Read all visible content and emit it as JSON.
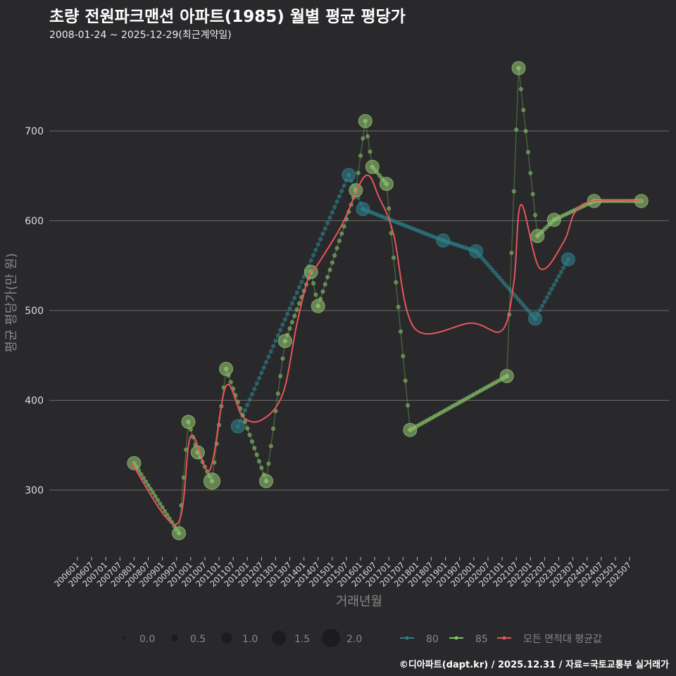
{
  "header": {
    "title": "초량 전원파크맨션 아파트(1985) 월별 평균 평당가",
    "subtitle": "2008-01-24 ~ 2025-12-29(최근계약일)"
  },
  "caption": "©디아파트(dapt.kr) / 2025.12.31 / 자료=국토교통부 실거래가",
  "chart_data": {
    "type": "scatter",
    "title": "초량 전원파크맨션 아파트(1985) 월별 평균 평당가",
    "xlabel": "거래년월",
    "ylabel": "평균 평당가(만 원)",
    "ylim": [
      225,
      790
    ],
    "xlim": [
      "2005-10",
      "2026-02"
    ],
    "yticks": [
      300,
      400,
      500,
      600,
      700
    ],
    "xticks": [
      "200601",
      "200607",
      "200701",
      "200707",
      "200801",
      "200807",
      "200901",
      "200907",
      "201001",
      "201007",
      "201101",
      "201107",
      "201201",
      "201207",
      "201301",
      "201307",
      "201401",
      "201407",
      "201501",
      "201507",
      "201601",
      "201607",
      "201701",
      "201707",
      "201801",
      "201807",
      "201901",
      "201907",
      "202001",
      "202007",
      "202101",
      "202107",
      "202201",
      "202207",
      "202301",
      "202307",
      "202401",
      "202407",
      "202501",
      "202507"
    ],
    "grid": true,
    "colors": {
      "80": "#2a7f86",
      "85": "#7dc365",
      "avg": "#e8555a",
      "bubble85": "#8fbf6e",
      "bubble80": "#2f7f8a"
    },
    "size_legend": {
      "title": "",
      "values": [
        0.0,
        0.5,
        1.0,
        1.5,
        2.0
      ],
      "labels": [
        "0.0",
        "0.5",
        "1.0",
        "1.5",
        "2.0"
      ]
    },
    "legend": {
      "placement": "bottom",
      "entries": [
        "80",
        "85",
        "모든 면적대 평균값"
      ]
    },
    "series": [
      {
        "name": "80",
        "points": [
          [
            "2011-09",
            371,
            1
          ],
          [
            "2015-08",
            651,
            1
          ],
          [
            "2016-02",
            613,
            1
          ],
          [
            "2018-12",
            578,
            1
          ],
          [
            "2020-02",
            566,
            1
          ],
          [
            "2022-03",
            491,
            1
          ],
          [
            "2023-05",
            557,
            1
          ]
        ]
      },
      {
        "name": "85",
        "points": [
          [
            "2008-01",
            330,
            1
          ],
          [
            "2009-08",
            252,
            1
          ],
          [
            "2009-12",
            376,
            1
          ],
          [
            "2010-04",
            342,
            1
          ],
          [
            "2010-10",
            310,
            1.6
          ],
          [
            "2011-04",
            435,
            1
          ],
          [
            "2012-09",
            310,
            1
          ],
          [
            "2013-05",
            466,
            1
          ],
          [
            "2014-04",
            543,
            1
          ],
          [
            "2014-07",
            505,
            1
          ],
          [
            "2015-11",
            634,
            1
          ],
          [
            "2016-03",
            711,
            1
          ],
          [
            "2016-06",
            660,
            1
          ],
          [
            "2016-12",
            641,
            1
          ],
          [
            "2017-10",
            367,
            1
          ],
          [
            "2021-03",
            427,
            1
          ],
          [
            "2021-08",
            770,
            1
          ],
          [
            "2022-04",
            583,
            1
          ],
          [
            "2022-11",
            601,
            1
          ],
          [
            "2024-04",
            622,
            1
          ],
          [
            "2025-12",
            622,
            1
          ]
        ]
      },
      {
        "name": "모든 면적대 평균값",
        "points": [
          [
            "2007-12",
            330
          ],
          [
            "2009-07",
            262
          ],
          [
            "2010-01",
            360
          ],
          [
            "2010-09",
            322
          ],
          [
            "2011-04",
            416
          ],
          [
            "2011-11",
            382
          ],
          [
            "2012-07",
            378
          ],
          [
            "2013-04",
            407
          ],
          [
            "2013-10",
            485
          ],
          [
            "2014-03",
            538
          ],
          [
            "2014-06",
            548
          ],
          [
            "2015-05",
            595
          ],
          [
            "2016-03",
            650
          ],
          [
            "2016-09",
            625
          ],
          [
            "2017-03",
            585
          ],
          [
            "2017-12",
            480
          ],
          [
            "2019-12",
            486
          ],
          [
            "2021-01",
            478
          ],
          [
            "2021-06",
            532
          ],
          [
            "2021-09",
            618
          ],
          [
            "2022-05",
            547
          ],
          [
            "2023-03",
            576
          ],
          [
            "2023-08",
            610
          ],
          [
            "2024-04",
            622
          ],
          [
            "2025-12",
            622
          ]
        ]
      }
    ]
  }
}
